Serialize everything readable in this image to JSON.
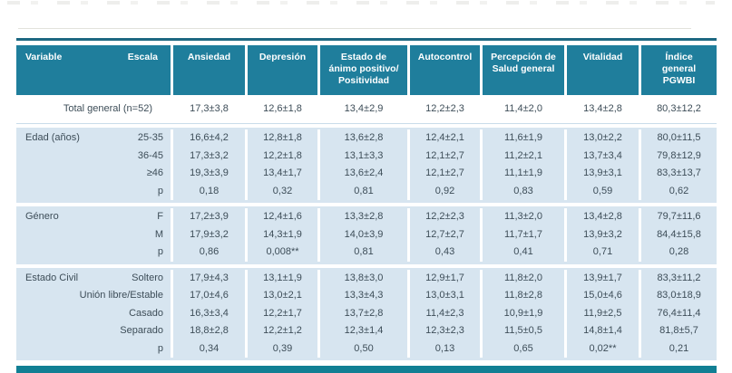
{
  "table": {
    "header": {
      "variable_label": "Variable",
      "escala_label": "Escala",
      "columns": [
        "Ansiedad",
        "Depresión",
        "Estado de\nánimo positivo/\nPositividad",
        "Autocontrol",
        "Percepción de\nSalud general",
        "Vitalidad",
        "Índice\ngeneral\nPGWBI"
      ]
    },
    "total_row": {
      "label": "Total general (n=52)",
      "values": [
        "17,3±3,8",
        "12,6±1,8",
        "13,4±2,9",
        "12,2±2,3",
        "11,4±2,0",
        "13,4±2,8",
        "80,3±12,2"
      ]
    },
    "sections": [
      {
        "variable": "Edad (años)",
        "rows": [
          {
            "escala": "25-35",
            "values": [
              "16,6±4,2",
              "12,8±1,8",
              "13,6±2,8",
              "12,4±2,1",
              "11,6±1,9",
              "13,0±2,2",
              "80,0±11,5"
            ]
          },
          {
            "escala": "36-45",
            "values": [
              "17,3±3,2",
              "12,2±1,8",
              "13,1±3,3",
              "12,1±2,7",
              "11,2±2,1",
              "13,7±3,4",
              "79,8±12,9"
            ]
          },
          {
            "escala": "≥46",
            "values": [
              "19,3±3,9",
              "13,4±1,7",
              "13,6±2,4",
              "12,1±2,7",
              "11,1±1,9",
              "13,9±3,1",
              "83,3±13,7"
            ]
          },
          {
            "escala": "p",
            "values": [
              "0,18",
              "0,32",
              "0,81",
              "0,92",
              "0,83",
              "0,59",
              "0,62"
            ]
          }
        ]
      },
      {
        "variable": "Género",
        "rows": [
          {
            "escala": "F",
            "values": [
              "17,2±3,9",
              "12,4±1,6",
              "13,3±2,8",
              "12,2±2,3",
              "11,3±2,0",
              "13,4±2,8",
              "79,7±11,6"
            ]
          },
          {
            "escala": "M",
            "values": [
              "17,9±3,2",
              "14,3±1,9",
              "14,0±3,9",
              "12,7±2,7",
              "11,7±1,7",
              "13,9±3,2",
              "84,4±15,8"
            ]
          },
          {
            "escala": "p",
            "values": [
              "0,86",
              "0,008**",
              "0,81",
              "0,43",
              "0,41",
              "0,71",
              "0,28"
            ]
          }
        ]
      },
      {
        "variable": "Estado Civil",
        "rows": [
          {
            "escala": "Soltero",
            "values": [
              "17,9±4,3",
              "13,1±1,9",
              "13,8±3,0",
              "12,9±1,7",
              "11,8±2,0",
              "13,9±1,7",
              "83,3±11,2"
            ]
          },
          {
            "escala": "Unión libre/Estable",
            "values": [
              "17,0±4,6",
              "13,0±2,1",
              "13,3±4,3",
              "13,0±3,1",
              "11,8±2,8",
              "15,0±4,6",
              "83,0±18,9"
            ]
          },
          {
            "escala": "Casado",
            "values": [
              "16,3±3,4",
              "12,2±1,7",
              "13,7±2,8",
              "11,4±2,3",
              "10,9±1,9",
              "11,9±2,5",
              "76,4±11,4"
            ]
          },
          {
            "escala": "Separado",
            "values": [
              "18,8±2,8",
              "12,2±1,2",
              "12,3±1,4",
              "12,3±2,3",
              "11,5±0,5",
              "14,8±1,4",
              "81,8±5,7"
            ]
          },
          {
            "escala": "p",
            "values": [
              "0,34",
              "0,39",
              "0,50",
              "0,13",
              "0,65",
              "0,02**",
              "0,21"
            ]
          }
        ]
      }
    ]
  }
}
